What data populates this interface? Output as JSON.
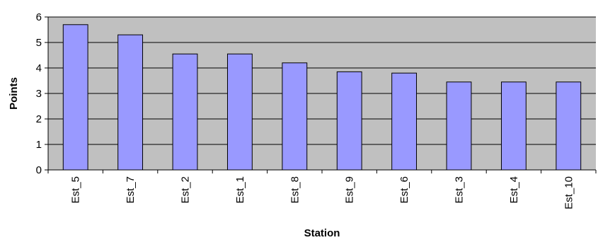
{
  "chart_data": {
    "type": "bar",
    "title": "",
    "xlabel": "Station",
    "ylabel": "Points",
    "categories": [
      "Est_5",
      "Est_7",
      "Est_2",
      "Est_1",
      "Est_8",
      "Est_9",
      "Est_6",
      "Est_3",
      "Est_4",
      "Est_10"
    ],
    "values": [
      5.7,
      5.3,
      4.55,
      4.55,
      4.2,
      3.85,
      3.8,
      3.45,
      3.45,
      3.45
    ],
    "ylim": [
      0,
      6
    ],
    "yticks": [
      0,
      1,
      2,
      3,
      4,
      5,
      6
    ],
    "grid": true,
    "legend": "none",
    "colors": {
      "bar_fill": "#9999ff",
      "bar_stroke": "#000000",
      "plot_background": "#c0c0c0",
      "gridline": "#000000"
    }
  }
}
